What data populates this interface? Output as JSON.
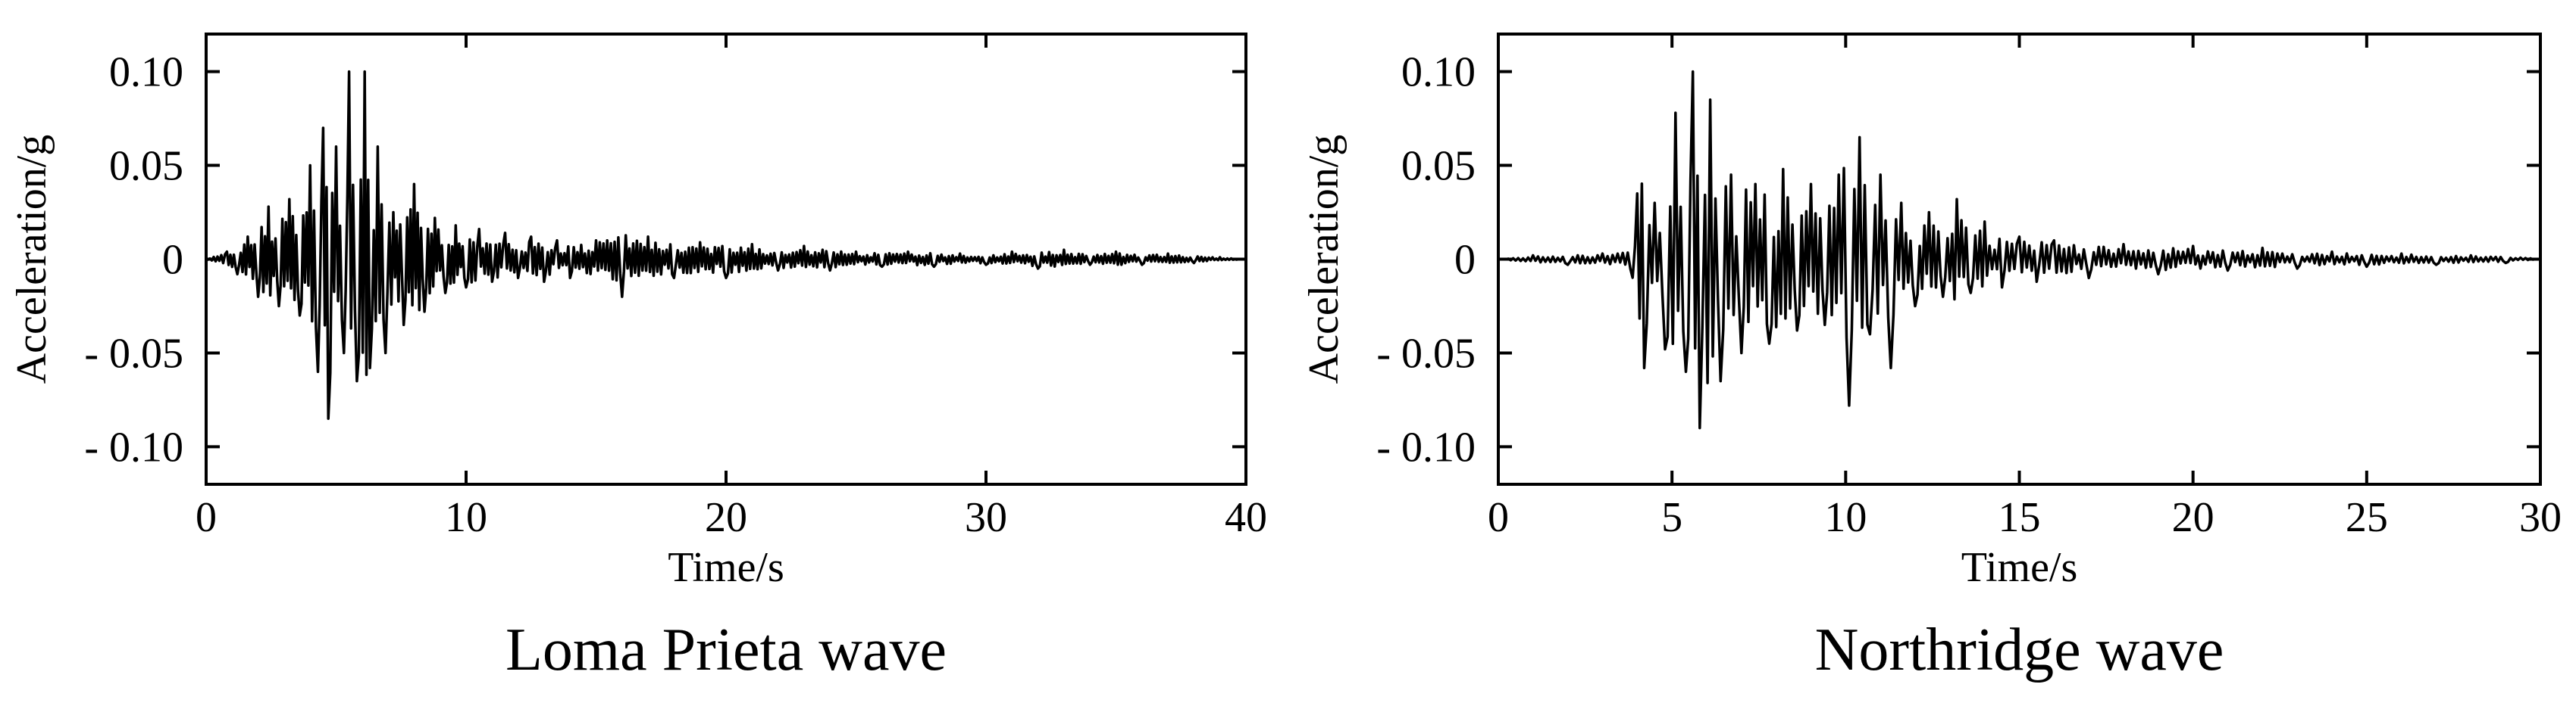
{
  "chart_data": [
    {
      "type": "line",
      "title": "Loma Prieta wave",
      "xlabel": "Time/s",
      "ylabel": "Acceleration/g",
      "xlim": [
        0,
        40
      ],
      "ylim": [
        -0.12,
        0.12
      ],
      "x_ticks": [
        0,
        10,
        20,
        30,
        40
      ],
      "x_tick_labels": [
        "0",
        "10",
        "20",
        "30",
        "40"
      ],
      "y_ticks": [
        0.1,
        0.05,
        0,
        -0.05,
        -0.1
      ],
      "y_tick_labels": [
        "0.10",
        "0.05",
        "0",
        "- 0.05",
        "- 0.10"
      ],
      "grid": false,
      "line_color": "#000000",
      "series": [
        {
          "x": [
            0,
            0.8,
            1.2,
            1.6,
            2.0,
            2.4,
            2.8,
            3.2,
            3.6,
            4.0,
            4.3,
            4.5,
            4.7,
            5.0,
            5.3,
            5.5,
            5.8,
            6.1,
            6.3,
            6.6,
            6.9,
            7.2,
            7.6,
            8.0,
            8.4,
            8.8,
            9.2,
            9.6,
            10.0,
            10.5,
            11.0,
            11.5,
            12.0,
            12.5,
            13.0,
            13.5,
            14.0,
            15.0,
            16.0,
            17.0,
            18.0,
            19.0,
            20.0,
            21.0,
            22.0,
            23.0,
            24.0,
            25.0,
            26.0,
            27.0,
            28.0,
            29.0,
            30.0,
            31.0,
            32.0,
            33.0,
            34.0,
            35.0,
            36.0,
            37.0,
            38.0,
            39.0,
            40.0
          ],
          "y": [
            0,
            0.004,
            -0.008,
            0.012,
            -0.02,
            0.028,
            -0.025,
            0.032,
            -0.03,
            0.05,
            -0.06,
            0.07,
            -0.085,
            0.06,
            -0.05,
            0.1,
            -0.065,
            0.1,
            -0.058,
            0.06,
            -0.05,
            0.025,
            -0.035,
            0.04,
            -0.028,
            0.022,
            -0.018,
            0.018,
            -0.015,
            0.016,
            -0.012,
            0.014,
            -0.01,
            0.012,
            -0.012,
            0.01,
            -0.01,
            0.01,
            -0.02,
            0.012,
            -0.01,
            0.009,
            -0.01,
            0.008,
            -0.006,
            0.007,
            -0.006,
            0.004,
            -0.004,
            0.004,
            -0.004,
            0.003,
            -0.003,
            0.004,
            -0.005,
            0.005,
            -0.003,
            0.004,
            -0.003,
            0.003,
            -0.002,
            0.001,
            0
          ]
        }
      ]
    },
    {
      "type": "line",
      "title": "Northridge wave",
      "xlabel": "Time/s",
      "ylabel": "Acceleration/g",
      "xlim": [
        0,
        30
      ],
      "ylim": [
        -0.12,
        0.12
      ],
      "x_ticks": [
        0,
        5,
        10,
        15,
        20,
        25,
        30
      ],
      "x_tick_labels": [
        "0",
        "5",
        "10",
        "15",
        "20",
        "25",
        "30"
      ],
      "y_ticks": [
        0.1,
        0.05,
        0,
        -0.05,
        -0.1
      ],
      "y_tick_labels": [
        "0.10",
        "0.05",
        "0",
        "- 0.05",
        "- 0.10"
      ],
      "grid": false,
      "line_color": "#000000",
      "series": [
        {
          "x": [
            0,
            1.0,
            2.0,
            3.0,
            3.8,
            4.0,
            4.2,
            4.5,
            4.8,
            5.1,
            5.4,
            5.6,
            5.8,
            6.1,
            6.4,
            6.7,
            7.0,
            7.4,
            7.8,
            8.2,
            8.6,
            9.0,
            9.4,
            9.8,
            10.1,
            10.4,
            10.7,
            11.0,
            11.3,
            11.6,
            12.0,
            12.4,
            12.8,
            13.2,
            13.6,
            14.0,
            14.5,
            15.0,
            15.5,
            16.0,
            17.0,
            18.0,
            19.0,
            20.0,
            21.0,
            22.0,
            23.0,
            24.0,
            25.0,
            26.0,
            27.0,
            28.0,
            29.0,
            30.0
          ],
          "y": [
            0,
            0.002,
            -0.003,
            0.003,
            -0.005,
            0.035,
            -0.058,
            0.03,
            -0.048,
            0.078,
            -0.06,
            0.1,
            -0.09,
            0.085,
            -0.065,
            0.045,
            -0.05,
            0.04,
            -0.045,
            0.048,
            -0.038,
            0.04,
            -0.035,
            0.045,
            -0.078,
            0.065,
            -0.04,
            0.045,
            -0.058,
            0.03,
            -0.025,
            0.025,
            -0.02,
            0.032,
            -0.018,
            0.02,
            -0.015,
            0.012,
            -0.012,
            0.01,
            -0.01,
            0.008,
            -0.008,
            0.007,
            -0.006,
            0.006,
            -0.005,
            0.004,
            -0.004,
            0.003,
            -0.003,
            0.002,
            -0.002,
            0
          ]
        }
      ]
    }
  ]
}
